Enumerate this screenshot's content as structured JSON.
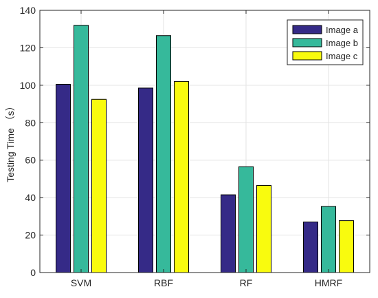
{
  "chart_data": {
    "type": "bar",
    "categories": [
      "SVM",
      "RBF",
      "RF",
      "HMRF"
    ],
    "series": [
      {
        "name": "Image a",
        "values": [
          100.5,
          98.5,
          41.5,
          27.0
        ],
        "color": "#352a87"
      },
      {
        "name": "Image b",
        "values": [
          132.0,
          126.5,
          56.5,
          35.3
        ],
        "color": "#36b99b"
      },
      {
        "name": "Image c",
        "values": [
          92.5,
          102.0,
          46.5,
          27.7
        ],
        "color": "#f9fb0e"
      }
    ],
    "title": "",
    "xlabel": "",
    "ylabel": "Testing Time （s）",
    "ylim": [
      0,
      140
    ],
    "yticks": [
      0,
      20,
      40,
      60,
      80,
      100,
      120,
      140
    ],
    "grid": true,
    "legend_position": "top-right"
  }
}
